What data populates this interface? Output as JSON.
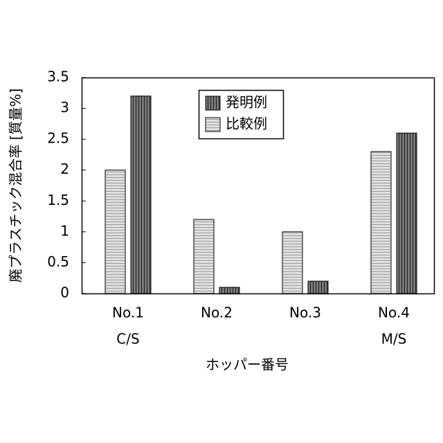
{
  "chart_data": {
    "type": "bar",
    "y_label": "廃プラスチック混合率 [質量%]",
    "x_label": "ホッパー番号",
    "categories": [
      "No.1",
      "No.2",
      "No.3",
      "No.4"
    ],
    "sublabels": [
      "C/S",
      null,
      null,
      "M/S"
    ],
    "series": [
      {
        "name": "発明例",
        "color": "#7a7a7a",
        "pattern": "vertical",
        "values": [
          3.2,
          0.1,
          0.2,
          2.6
        ]
      },
      {
        "name": "比較例",
        "color": "#e0e0e0",
        "pattern": "horizontal",
        "values": [
          2.0,
          1.2,
          1.0,
          2.3
        ]
      }
    ],
    "ylim": [
      0,
      3.5
    ],
    "yticks": [
      0,
      0.5,
      1,
      1.5,
      2,
      2.5,
      3,
      3.5
    ],
    "grid": false
  }
}
